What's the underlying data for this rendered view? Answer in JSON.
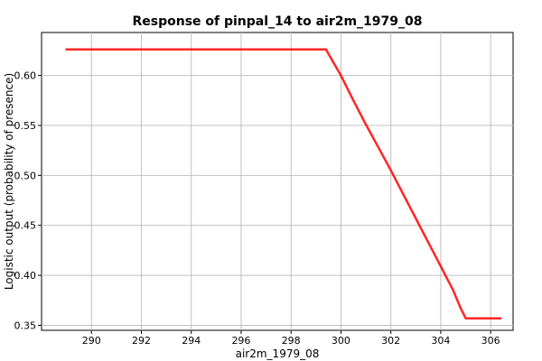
{
  "chart_data": {
    "type": "line",
    "title": "Response of pinpal_14 to air2m_1979_08",
    "xlabel": "air2m_1979_08",
    "ylabel": "Logistic output (probability of presence)",
    "xlim": [
      288.0,
      306.9
    ],
    "ylim": [
      0.345,
      0.643
    ],
    "grid": true,
    "xticks": [
      290,
      292,
      294,
      296,
      298,
      300,
      302,
      304,
      306
    ],
    "xtick_labels": [
      "290",
      "292",
      "294",
      "296",
      "298",
      "300",
      "302",
      "304",
      "306"
    ],
    "yticks": [
      0.35,
      0.4,
      0.45,
      0.5,
      0.55,
      0.6
    ],
    "ytick_labels": [
      "0.35",
      "0.40",
      "0.45",
      "0.50",
      "0.55",
      "0.60"
    ],
    "series": [
      {
        "color": "#ff0000",
        "x": [
          289.0,
          299.4,
          299.7,
          300.0,
          300.5,
          301.0,
          301.5,
          302.0,
          302.5,
          303.0,
          303.5,
          304.0,
          304.5,
          304.8,
          305.0,
          306.4
        ],
        "y": [
          0.626,
          0.626,
          0.613,
          0.6,
          0.575,
          0.551,
          0.528,
          0.505,
          0.481,
          0.457,
          0.433,
          0.409,
          0.385,
          0.367,
          0.357,
          0.357
        ]
      }
    ]
  }
}
